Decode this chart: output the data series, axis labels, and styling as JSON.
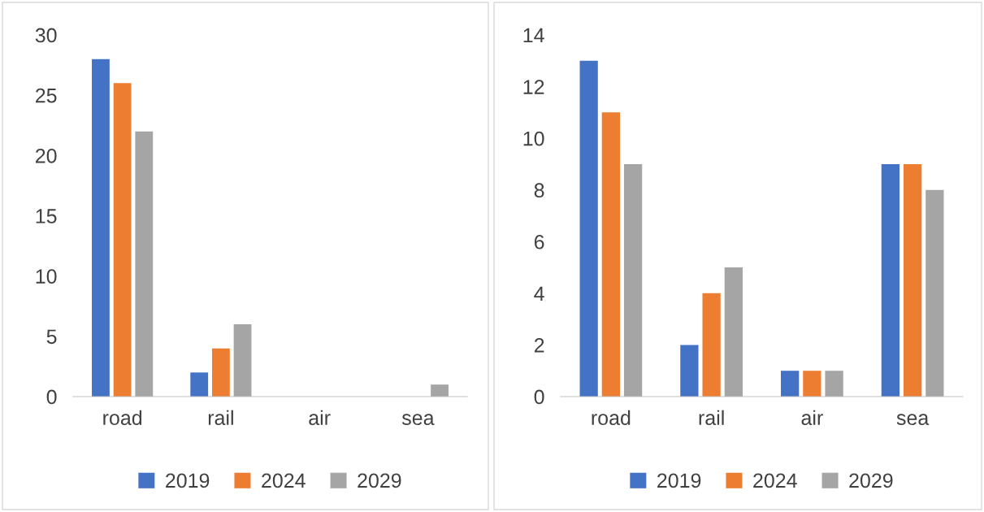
{
  "chart_data": [
    {
      "type": "bar",
      "categories": [
        "road",
        "rail",
        "air",
        "sea"
      ],
      "series": [
        {
          "name": "2019",
          "color": "#4472c4",
          "values": [
            28,
            2,
            0,
            0
          ]
        },
        {
          "name": "2024",
          "color": "#ed7d31",
          "values": [
            26,
            4,
            0,
            0
          ]
        },
        {
          "name": "2029",
          "color": "#a5a5a5",
          "values": [
            22,
            6,
            0,
            1
          ]
        }
      ],
      "ylim": [
        0,
        30
      ],
      "yticks": [
        0,
        5,
        10,
        15,
        20,
        25,
        30
      ],
      "grid": false,
      "legend": "bottom"
    },
    {
      "type": "bar",
      "categories": [
        "road",
        "rail",
        "air",
        "sea"
      ],
      "series": [
        {
          "name": "2019",
          "color": "#4472c4",
          "values": [
            13,
            2,
            1,
            9
          ]
        },
        {
          "name": "2024",
          "color": "#ed7d31",
          "values": [
            11,
            4,
            1,
            9
          ]
        },
        {
          "name": "2029",
          "color": "#a5a5a5",
          "values": [
            9,
            5,
            1,
            8
          ]
        }
      ],
      "ylim": [
        0,
        14
      ],
      "yticks": [
        0,
        2,
        4,
        6,
        8,
        10,
        12,
        14
      ],
      "grid": false,
      "legend": "bottom"
    }
  ]
}
